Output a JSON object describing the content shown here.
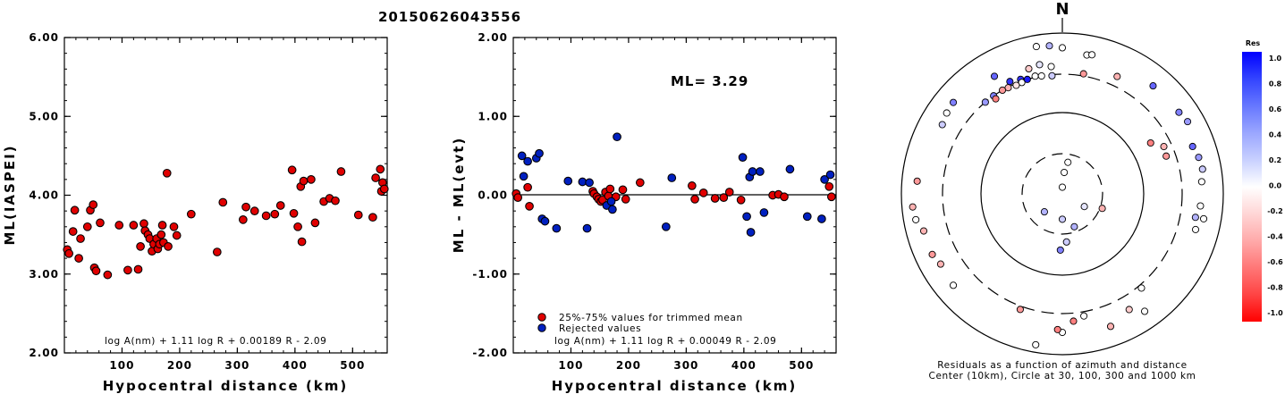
{
  "title": "20150626043556",
  "chart_data": [
    {
      "type": "scatter",
      "name": "ml-vs-distance",
      "xlabel": "Hypocentral distance (km)",
      "ylabel": "ML(IASPEI)",
      "xlim": [
        0,
        560
      ],
      "ylim": [
        2.0,
        6.0
      ],
      "xticks": [
        "100",
        "200",
        "300",
        "400",
        "500"
      ],
      "yticks": [
        "2.00",
        "3.00",
        "4.00",
        "5.00",
        "6.00"
      ],
      "formula": "log A(nm) + 1.11 log R + 0.00189 R - 2.09",
      "point_color": "#e00000",
      "points": [
        [
          5,
          3.31
        ],
        [
          8,
          3.26
        ],
        [
          15,
          3.54
        ],
        [
          18,
          3.81
        ],
        [
          25,
          3.2
        ],
        [
          28,
          3.45
        ],
        [
          40,
          3.6
        ],
        [
          45,
          3.81
        ],
        [
          50,
          3.88
        ],
        [
          52,
          3.08
        ],
        [
          55,
          3.04
        ],
        [
          62,
          3.65
        ],
        [
          75,
          2.99
        ],
        [
          95,
          3.62
        ],
        [
          110,
          3.05
        ],
        [
          120,
          3.62
        ],
        [
          128,
          3.06
        ],
        [
          132,
          3.35
        ],
        [
          138,
          3.64
        ],
        [
          140,
          3.55
        ],
        [
          145,
          3.5
        ],
        [
          148,
          3.45
        ],
        [
          152,
          3.29
        ],
        [
          155,
          3.38
        ],
        [
          160,
          3.45
        ],
        [
          162,
          3.32
        ],
        [
          165,
          3.38
        ],
        [
          168,
          3.5
        ],
        [
          170,
          3.62
        ],
        [
          172,
          3.4
        ],
        [
          178,
          4.28
        ],
        [
          180,
          3.35
        ],
        [
          190,
          3.6
        ],
        [
          195,
          3.49
        ],
        [
          220,
          3.76
        ],
        [
          265,
          3.28
        ],
        [
          275,
          3.91
        ],
        [
          310,
          3.69
        ],
        [
          315,
          3.85
        ],
        [
          330,
          3.8
        ],
        [
          350,
          3.74
        ],
        [
          365,
          3.76
        ],
        [
          375,
          3.87
        ],
        [
          395,
          4.32
        ],
        [
          398,
          3.77
        ],
        [
          405,
          3.6
        ],
        [
          410,
          4.11
        ],
        [
          412,
          3.41
        ],
        [
          415,
          4.18
        ],
        [
          428,
          4.2
        ],
        [
          435,
          3.65
        ],
        [
          450,
          3.92
        ],
        [
          460,
          3.96
        ],
        [
          470,
          3.93
        ],
        [
          480,
          4.3
        ],
        [
          510,
          3.75
        ],
        [
          535,
          3.72
        ],
        [
          540,
          4.22
        ],
        [
          548,
          4.33
        ],
        [
          550,
          4.05
        ],
        [
          552,
          4.16
        ],
        [
          555,
          4.08
        ]
      ]
    },
    {
      "type": "scatter",
      "name": "ml-residuals",
      "xlabel": "Hypocentral distance (km)",
      "ylabel": "ML - ML(evt)",
      "xlim": [
        0,
        560
      ],
      "ylim": [
        -2.0,
        2.0
      ],
      "xticks": [
        "100",
        "200",
        "300",
        "400",
        "500"
      ],
      "yticks": [
        "-2.00",
        "-1.00",
        "0.00",
        "1.00",
        "2.00"
      ],
      "annotation": "ML= 3.29",
      "formula": "log A(nm) + 1.11 log R + 0.00049 R - 2.09",
      "legend": [
        "25%-75% values for trimmed mean",
        "Rejected values"
      ],
      "series": [
        {
          "name": "25%-75% values for trimmed mean",
          "color": "#e00000",
          "points": [
            [
              5,
              0.02
            ],
            [
              8,
              -0.03
            ],
            [
              25,
              0.1
            ],
            [
              28,
              -0.14
            ],
            [
              138,
              0.05
            ],
            [
              140,
              0.02
            ],
            [
              145,
              -0.02
            ],
            [
              148,
              -0.05
            ],
            [
              152,
              -0.08
            ],
            [
              155,
              -0.06
            ],
            [
              160,
              0.04
            ],
            [
              165,
              -0.01
            ],
            [
              168,
              0.08
            ],
            [
              178,
              -0.02
            ],
            [
              190,
              0.07
            ],
            [
              195,
              -0.05
            ],
            [
              220,
              0.16
            ],
            [
              310,
              0.12
            ],
            [
              315,
              -0.05
            ],
            [
              330,
              0.03
            ],
            [
              350,
              -0.04
            ],
            [
              365,
              -0.03
            ],
            [
              375,
              0.04
            ],
            [
              395,
              -0.06
            ],
            [
              450,
              0.0
            ],
            [
              460,
              0.01
            ],
            [
              470,
              -0.02
            ],
            [
              548,
              0.11
            ],
            [
              552,
              -0.02
            ]
          ]
        },
        {
          "name": "Rejected values",
          "color": "#0020c0",
          "points": [
            [
              15,
              0.5
            ],
            [
              18,
              0.24
            ],
            [
              25,
              0.43
            ],
            [
              40,
              0.47
            ],
            [
              45,
              0.53
            ],
            [
              50,
              -0.3
            ],
            [
              55,
              -0.33
            ],
            [
              75,
              -0.42
            ],
            [
              95,
              0.18
            ],
            [
              120,
              0.17
            ],
            [
              128,
              -0.42
            ],
            [
              132,
              0.16
            ],
            [
              162,
              -0.13
            ],
            [
              170,
              -0.08
            ],
            [
              172,
              -0.18
            ],
            [
              180,
              0.74
            ],
            [
              265,
              -0.4
            ],
            [
              275,
              0.22
            ],
            [
              398,
              0.48
            ],
            [
              405,
              -0.27
            ],
            [
              410,
              0.23
            ],
            [
              412,
              -0.47
            ],
            [
              415,
              0.3
            ],
            [
              428,
              0.3
            ],
            [
              435,
              -0.22
            ],
            [
              480,
              0.33
            ],
            [
              510,
              -0.27
            ],
            [
              535,
              -0.3
            ],
            [
              540,
              0.2
            ],
            [
              550,
              0.26
            ]
          ]
        }
      ]
    },
    {
      "type": "scatter",
      "name": "azimuth-residuals",
      "north_label": "N",
      "caption_line1": "Residuals as a function of azimuth and distance",
      "caption_line2": "Center (10km), Circle at 30, 100, 300 and 1000 km",
      "colorbar_title": "Res",
      "colorbar_ticks": [
        "1.0",
        "0.8",
        "0.6",
        "0.4",
        "0.2",
        "0.0",
        "-0.2",
        "-0.4",
        "-0.6",
        "-0.8",
        "-1.0"
      ],
      "colorbar_stops": [
        "#0000ff",
        "#3344ff",
        "#6677ff",
        "#9aa6ff",
        "#c8d0ff",
        "#ffffff",
        "#ffd6d6",
        "#ffaaaa",
        "#ff7777",
        "#ff4444",
        "#ff0000"
      ],
      "points_note": "each point: [azimuth_deg, distance_km, residual]",
      "points": [
        [
          0,
          12,
          0.0
        ],
        [
          5,
          18,
          0.0
        ],
        [
          10,
          24,
          0.0
        ],
        [
          180,
          20,
          0.2
        ],
        [
          160,
          26,
          0.3
        ],
        [
          120,
          20,
          0.1
        ],
        [
          225,
          20,
          0.3
        ],
        [
          110,
          32,
          -0.3
        ],
        [
          175,
          38,
          0.2
        ],
        [
          182,
          48,
          0.5
        ],
        [
          0,
          650,
          0.0
        ],
        [
          10,
          560,
          0.0
        ],
        [
          12,
          580,
          0.0
        ],
        [
          330,
          480,
          0.6
        ],
        [
          350,
          420,
          0.1
        ],
        [
          355,
          380,
          0.0
        ],
        [
          345,
          400,
          -0.2
        ],
        [
          340,
          320,
          0.8
        ],
        [
          335,
          340,
          0.8
        ],
        [
          325,
          300,
          0.5
        ],
        [
          343,
          300,
          0.9
        ],
        [
          347,
          310,
          0.0
        ],
        [
          340,
          290,
          0.0
        ],
        [
          337,
          285,
          -0.1
        ],
        [
          333,
          295,
          -0.3
        ],
        [
          330,
          300,
          -0.4
        ],
        [
          325,
          270,
          -0.5
        ],
        [
          320,
          300,
          0.4
        ],
        [
          350,
          300,
          0.0
        ],
        [
          355,
          290,
          0.2
        ],
        [
          10,
          320,
          -0.4
        ],
        [
          25,
          400,
          -0.3
        ],
        [
          40,
          560,
          0.6
        ],
        [
          55,
          580,
          0.5
        ],
        [
          60,
          620,
          0.4
        ],
        [
          70,
          520,
          0.6
        ],
        [
          75,
          560,
          0.4
        ],
        [
          80,
          580,
          0.2
        ],
        [
          85,
          540,
          0.0
        ],
        [
          95,
          520,
          0.0
        ],
        [
          100,
          470,
          0.3
        ],
        [
          105,
          510,
          0.0
        ],
        [
          100,
          600,
          0.0
        ],
        [
          60,
          180,
          -0.5
        ],
        [
          65,
          240,
          -0.3
        ],
        [
          70,
          230,
          -0.4
        ],
        [
          140,
          330,
          0.0
        ],
        [
          145,
          600,
          0.0
        ],
        [
          150,
          450,
          -0.2
        ],
        [
          160,
          560,
          -0.3
        ],
        [
          170,
          340,
          0.0
        ],
        [
          175,
          380,
          -0.5
        ],
        [
          180,
          520,
          0.0
        ],
        [
          182,
          480,
          -0.5
        ],
        [
          190,
          800,
          0.0
        ],
        [
          200,
          330,
          -0.4
        ],
        [
          230,
          580,
          0.0
        ],
        [
          240,
          550,
          -0.3
        ],
        [
          245,
          600,
          -0.4
        ],
        [
          255,
          600,
          -0.3
        ],
        [
          260,
          700,
          0.0
        ],
        [
          275,
          640,
          -0.4
        ],
        [
          265,
          730,
          -0.3
        ],
        [
          310,
          580,
          0.5
        ],
        [
          355,
          700,
          0.3
        ],
        [
          350,
          720,
          0.0
        ],
        [
          300,
          520,
          0.2
        ],
        [
          305,
          560,
          0.0
        ]
      ]
    }
  ]
}
